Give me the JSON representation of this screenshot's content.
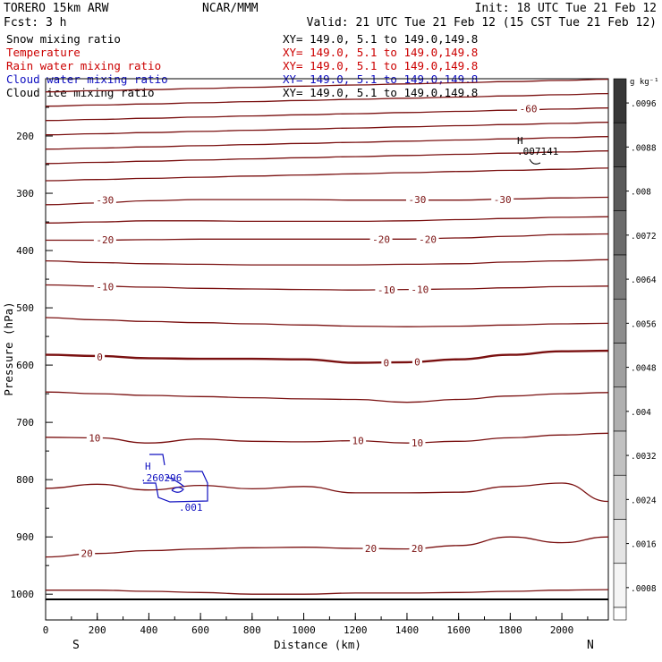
{
  "header": {
    "model": "TORERO  15km ARW",
    "org": "NCAR/MMM",
    "init": "Init: 18 UTC Tue 21 Feb 12",
    "fcst": "Fcst:    3 h",
    "valid": "Valid: 21 UTC Tue 21 Feb 12 (15 CST Tue 21 Feb 12)"
  },
  "fields": [
    {
      "name": "Snow mixing ratio",
      "xy": "XY= 149.0,  5.1 to 149.0,149.8",
      "color": "#000000"
    },
    {
      "name": "Temperature",
      "xy": "XY= 149.0,  5.1 to 149.0,149.8",
      "color": "#cc0000"
    },
    {
      "name": "Rain water mixing ratio",
      "xy": "XY= 149.0,  5.1 to 149.0,149.8",
      "color": "#cc0000"
    },
    {
      "name": "Cloud water mixing ratio",
      "xy": "XY= 149.0,  5.1 to 149.0,149.8",
      "color": "#1010c0"
    },
    {
      "name": "Cloud ice mixing ratio",
      "xy": "XY= 149.0,  5.1 to 149.0,149.8",
      "color": "#000000"
    }
  ],
  "colorbar": {
    "unit": "g kg⁻¹",
    "ticks": [
      ".0096",
      ".0088",
      ".008",
      ".0072",
      ".0064",
      ".0056",
      ".0048",
      ".004",
      ".0032",
      ".0024",
      ".0016",
      ".0008"
    ]
  },
  "labels": {
    "cw_high": "H",
    "cw_high_val": ".260296",
    "cw_contour": ".001",
    "ci_high": "H",
    "ci_high_val": ".007141",
    "left_end": "S",
    "right_end": "N"
  },
  "chart_data": {
    "type": "line",
    "title": "Temperature",
    "xlabel": "Distance (km)",
    "ylabel": "Pressure (hPa)",
    "xlim": [
      0,
      2180
    ],
    "ylim": [
      1045,
      100
    ],
    "xticks": [
      0,
      200,
      400,
      600,
      800,
      1000,
      1200,
      1400,
      1600,
      1800,
      2000
    ],
    "yticks": [
      200,
      300,
      400,
      500,
      600,
      700,
      800,
      900,
      1000
    ],
    "contour_interval": 5,
    "x": [
      0,
      200,
      400,
      600,
      800,
      1000,
      1200,
      1400,
      1600,
      1800,
      2000,
      2180
    ],
    "series": [
      {
        "level": -65,
        "values": [
          123,
          121,
          119,
          117,
          115,
          113,
          111,
          109,
          107,
          105,
          103,
          101
        ]
      },
      {
        "level": -60,
        "values": [
          148,
          146,
          144,
          142,
          140,
          138,
          136,
          134,
          132,
          130,
          128,
          126
        ]
      },
      {
        "level": -55,
        "values": [
          173,
          171,
          169,
          167,
          165,
          163,
          161,
          159,
          157,
          155,
          153,
          151
        ]
      },
      {
        "level": -50,
        "values": [
          198,
          196,
          194,
          192,
          190,
          188,
          186,
          184,
          182,
          180,
          178,
          176
        ]
      },
      {
        "level": -45,
        "values": [
          223,
          221,
          219,
          217,
          215,
          213,
          211,
          209,
          207,
          205,
          203,
          201
        ]
      },
      {
        "level": -40,
        "values": [
          248,
          246,
          244,
          242,
          240,
          238,
          236,
          234,
          232,
          230,
          228,
          226
        ]
      },
      {
        "level": -35,
        "values": [
          278,
          276,
          274,
          272,
          270,
          268,
          266,
          264,
          262,
          260,
          258,
          256
        ]
      },
      {
        "level": -30,
        "values": [
          320,
          317,
          313,
          311,
          311,
          311,
          312,
          312,
          312,
          310,
          308,
          307
        ]
      },
      {
        "level": -25,
        "values": [
          352,
          350,
          348,
          348,
          349,
          349,
          349,
          348,
          346,
          344,
          342,
          341
        ]
      },
      {
        "level": -20,
        "values": [
          382,
          382,
          381,
          380,
          380,
          380,
          380,
          380,
          378,
          375,
          372,
          371
        ]
      },
      {
        "level": -15,
        "values": [
          418,
          421,
          423,
          424,
          425,
          425,
          425,
          424,
          423,
          420,
          418,
          416
        ]
      },
      {
        "level": -10,
        "values": [
          460,
          462,
          464,
          466,
          467,
          468,
          469,
          468,
          467,
          465,
          463,
          462
        ]
      },
      {
        "level": -5,
        "values": [
          517,
          521,
          524,
          526,
          528,
          530,
          532,
          533,
          532,
          530,
          528,
          527
        ]
      },
      {
        "level": 0,
        "values": [
          582,
          584,
          588,
          589,
          589,
          590,
          596,
          595,
          590,
          582,
          576,
          575
        ]
      },
      {
        "level": 5,
        "values": [
          647,
          650,
          653,
          655,
          657,
          659,
          660,
          665,
          660,
          654,
          650,
          648
        ]
      },
      {
        "level": 10,
        "values": [
          726,
          727,
          736,
          729,
          733,
          734,
          732,
          736,
          733,
          727,
          722,
          719
        ]
      },
      {
        "level": 15,
        "values": [
          815,
          808,
          818,
          810,
          816,
          812,
          823,
          823,
          822,
          812,
          806,
          838
        ]
      },
      {
        "level": 20,
        "values": [
          935,
          929,
          924,
          921,
          919,
          918,
          920,
          921,
          915,
          900,
          910,
          900
        ]
      },
      {
        "level": 25,
        "values": [
          993,
          993,
          995,
          997,
          1000,
          1000,
          998,
          998,
          997,
          995,
          993,
          992
        ]
      }
    ],
    "contour_labels": [
      {
        "text": "-60",
        "x": 1870,
        "p": 152
      },
      {
        "text": "-30",
        "x": 230,
        "p": 312
      },
      {
        "text": "-30",
        "x": 1440,
        "p": 311
      },
      {
        "text": "-30",
        "x": 1770,
        "p": 311
      },
      {
        "text": "-20",
        "x": 230,
        "p": 381
      },
      {
        "text": "-20",
        "x": 1300,
        "p": 380
      },
      {
        "text": "-20",
        "x": 1480,
        "p": 380
      },
      {
        "text": "-10",
        "x": 230,
        "p": 463
      },
      {
        "text": "-10",
        "x": 1320,
        "p": 469
      },
      {
        "text": "-10",
        "x": 1450,
        "p": 468
      },
      {
        "text": "0",
        "x": 210,
        "p": 586
      },
      {
        "text": "0",
        "x": 1320,
        "p": 596
      },
      {
        "text": "0",
        "x": 1440,
        "p": 594
      },
      {
        "text": "10",
        "x": 190,
        "p": 727
      },
      {
        "text": "10",
        "x": 1210,
        "p": 732
      },
      {
        "text": "10",
        "x": 1440,
        "p": 736
      },
      {
        "text": "20",
        "x": 160,
        "p": 929
      },
      {
        "text": "20",
        "x": 1260,
        "p": 920
      },
      {
        "text": "20",
        "x": 1440,
        "p": 920
      }
    ],
    "grid": false,
    "legend": "top-left"
  }
}
